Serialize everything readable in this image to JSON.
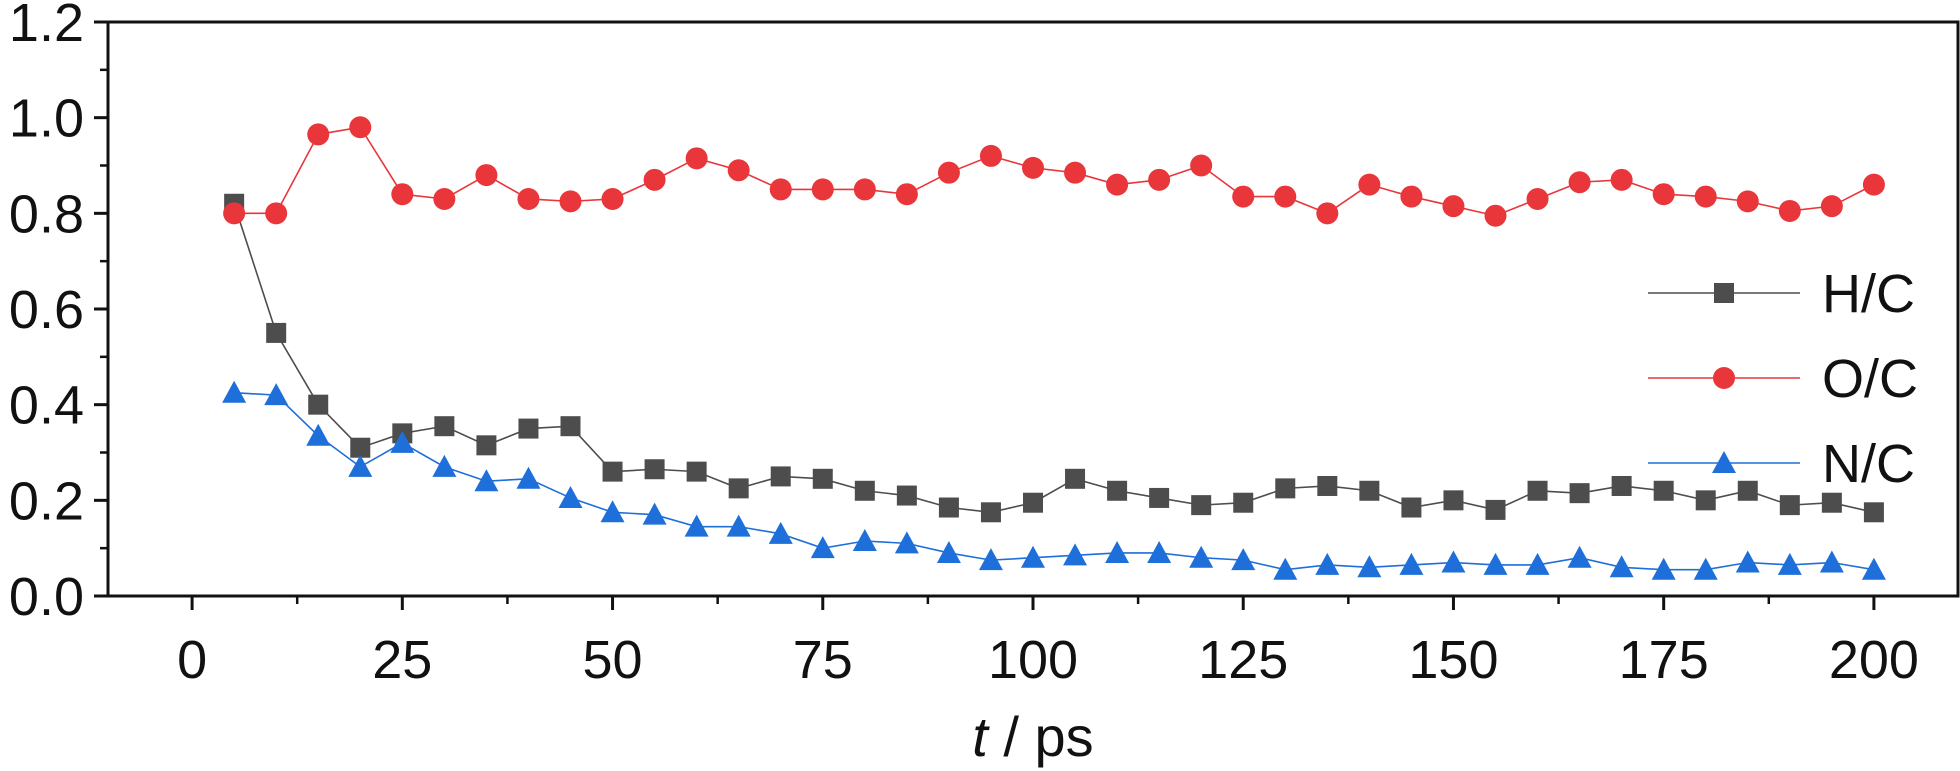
{
  "chart_data": {
    "type": "line",
    "xlabel": {
      "italic": "t",
      "rest": " / ps"
    },
    "ylabel": "",
    "xlim": [
      -10,
      210
    ],
    "ylim": [
      0,
      1.2
    ],
    "x_ticks": [
      0,
      25,
      50,
      75,
      100,
      125,
      150,
      175,
      200
    ],
    "x_tick_labels": [
      "0",
      "25",
      "50",
      "75",
      "100",
      "125",
      "150",
      "175",
      "200"
    ],
    "y_ticks": [
      0,
      0.2,
      0.4,
      0.6,
      0.8,
      1.0,
      1.2
    ],
    "y_tick_labels": [
      "0.0",
      "0.2",
      "0.4",
      "0.6",
      "0.8",
      "1.0",
      "1.2"
    ],
    "grid": false,
    "legend_position": "right",
    "x": [
      5,
      10,
      15,
      20,
      25,
      30,
      35,
      40,
      45,
      50,
      55,
      60,
      65,
      70,
      75,
      80,
      85,
      90,
      95,
      100,
      105,
      110,
      115,
      120,
      125,
      130,
      135,
      140,
      145,
      150,
      155,
      160,
      165,
      170,
      175,
      180,
      185,
      190,
      195,
      200
    ],
    "series": [
      {
        "name": "H/C",
        "color": "#4d4d4d",
        "marker": "square",
        "values": [
          0.82,
          0.55,
          0.4,
          0.31,
          0.34,
          0.355,
          0.315,
          0.35,
          0.355,
          0.26,
          0.265,
          0.26,
          0.225,
          0.25,
          0.245,
          0.22,
          0.21,
          0.185,
          0.175,
          0.195,
          0.245,
          0.22,
          0.205,
          0.19,
          0.195,
          0.225,
          0.23,
          0.22,
          0.185,
          0.2,
          0.18,
          0.22,
          0.215,
          0.23,
          0.22,
          0.2,
          0.22,
          0.19,
          0.195,
          0.175
        ]
      },
      {
        "name": "O/C",
        "color": "#e8363a",
        "marker": "circle",
        "values": [
          0.8,
          0.8,
          0.965,
          0.98,
          0.84,
          0.83,
          0.88,
          0.83,
          0.825,
          0.83,
          0.87,
          0.915,
          0.89,
          0.85,
          0.85,
          0.85,
          0.84,
          0.885,
          0.92,
          0.895,
          0.885,
          0.86,
          0.87,
          0.9,
          0.835,
          0.835,
          0.8,
          0.86,
          0.835,
          0.815,
          0.795,
          0.83,
          0.865,
          0.87,
          0.84,
          0.835,
          0.825,
          0.805,
          0.815,
          0.86
        ]
      },
      {
        "name": "N/C",
        "color": "#1e6fd9",
        "marker": "triangle",
        "values": [
          0.425,
          0.42,
          0.335,
          0.27,
          0.32,
          0.27,
          0.24,
          0.245,
          0.205,
          0.175,
          0.17,
          0.145,
          0.145,
          0.13,
          0.1,
          0.115,
          0.11,
          0.09,
          0.075,
          0.08,
          0.085,
          0.09,
          0.09,
          0.08,
          0.075,
          0.055,
          0.065,
          0.06,
          0.065,
          0.07,
          0.065,
          0.065,
          0.08,
          0.06,
          0.055,
          0.055,
          0.07,
          0.065,
          0.07,
          0.055
        ]
      }
    ]
  }
}
